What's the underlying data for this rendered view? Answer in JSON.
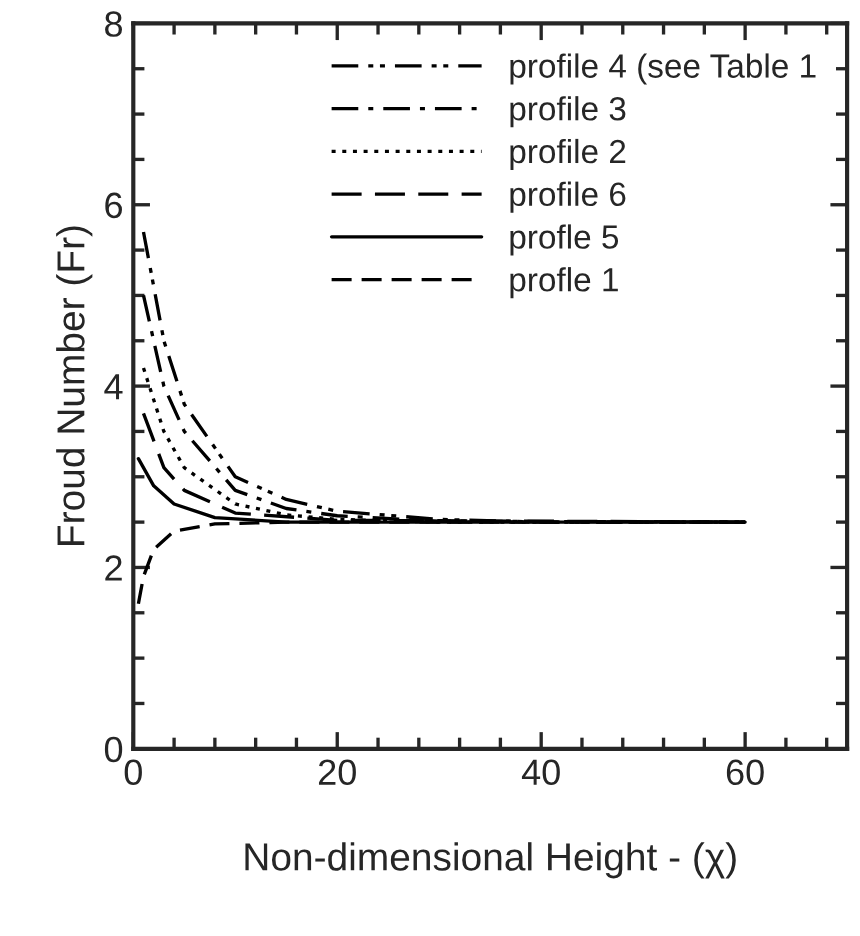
{
  "chart_data": {
    "type": "line",
    "xlabel": "Non-dimensional Height - (χ)",
    "ylabel": "Froud Number (Fr)",
    "xlim": [
      0,
      70
    ],
    "ylim": [
      0,
      8
    ],
    "xticks": [
      0,
      {
        "value": 4,
        "label": null
      },
      {
        "value": 8,
        "label": null
      },
      {
        "value": 12,
        "label": null
      },
      {
        "value": 16,
        "label": null
      },
      20,
      {
        "value": 24,
        "label": null
      },
      {
        "value": 28,
        "label": null
      },
      {
        "value": 32,
        "label": null
      },
      {
        "value": 36,
        "label": null
      },
      40,
      {
        "value": 44,
        "label": null
      },
      {
        "value": 48,
        "label": null
      },
      {
        "value": 52,
        "label": null
      },
      {
        "value": 56,
        "label": null
      },
      60,
      {
        "value": 64,
        "label": null
      },
      {
        "value": 68,
        "label": null
      }
    ],
    "yticks": [
      0,
      {
        "value": 0.5,
        "label": null
      },
      {
        "value": 1,
        "label": null
      },
      {
        "value": 1.5,
        "label": null
      },
      2,
      {
        "value": 2.5,
        "label": null
      },
      {
        "value": 3,
        "label": null
      },
      {
        "value": 3.5,
        "label": null
      },
      4,
      {
        "value": 4.5,
        "label": null
      },
      {
        "value": 5,
        "label": null
      },
      {
        "value": 5.5,
        "label": null
      },
      6,
      {
        "value": 6.5,
        "label": null
      },
      {
        "value": 7,
        "label": null
      },
      {
        "value": 7.5,
        "label": null
      },
      8
    ],
    "grid": false,
    "legend": "top right",
    "series": [
      {
        "name": "profile 4 (see Table 1",
        "color": "#000000",
        "line_style": "dashdotdot",
        "x": [
          1,
          3,
          5,
          10,
          15,
          20,
          30,
          40,
          60
        ],
        "values": [
          5.7,
          4.5,
          3.8,
          3.0,
          2.75,
          2.62,
          2.53,
          2.5,
          2.5
        ]
      },
      {
        "name": "profile 3",
        "color": "#000000",
        "line_style": "dashdot",
        "x": [
          1,
          3,
          5,
          10,
          15,
          20,
          30,
          60
        ],
        "values": [
          5.0,
          4.0,
          3.5,
          2.85,
          2.65,
          2.57,
          2.51,
          2.5
        ]
      },
      {
        "name": "profile 2",
        "color": "#000000",
        "line_style": "dotted",
        "x": [
          1,
          3,
          5,
          10,
          15,
          20,
          30,
          60
        ],
        "values": [
          4.2,
          3.5,
          3.1,
          2.7,
          2.58,
          2.53,
          2.5,
          2.5
        ]
      },
      {
        "name": "profile 6",
        "color": "#000000",
        "line_style": "longdash",
        "x": [
          1,
          3,
          5,
          10,
          20,
          60
        ],
        "values": [
          3.7,
          3.1,
          2.85,
          2.6,
          2.52,
          2.5
        ]
      },
      {
        "name": "profle 5",
        "color": "#000000",
        "line_style": "solid",
        "x": [
          0.5,
          2,
          4,
          8,
          15,
          60
        ],
        "values": [
          3.2,
          2.9,
          2.7,
          2.55,
          2.5,
          2.5
        ]
      },
      {
        "name": "profle 1",
        "color": "#000000",
        "line_style": "dashed",
        "x": [
          0.5,
          1,
          2,
          4,
          8,
          15,
          60
        ],
        "values": [
          1.6,
          1.9,
          2.2,
          2.4,
          2.48,
          2.5,
          2.5
        ]
      }
    ]
  }
}
